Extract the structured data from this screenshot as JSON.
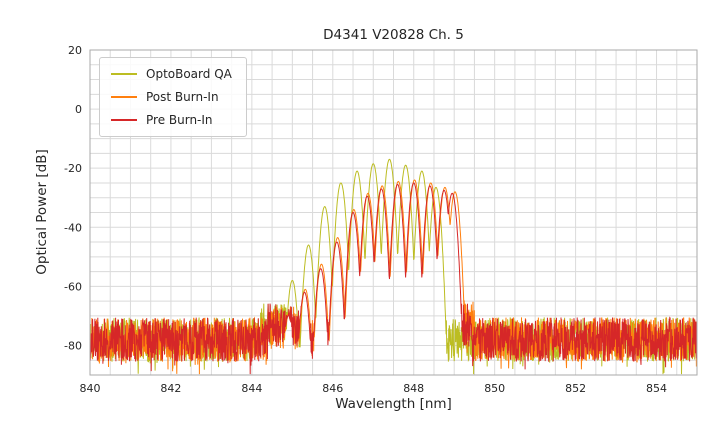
{
  "chart_data": {
    "type": "line",
    "title": "D4341 V20828 Ch. 5",
    "xlabel": "Wavelength [nm]",
    "ylabel": "Optical Power [dB]",
    "xlim": [
      840,
      855
    ],
    "ylim": [
      -90,
      20
    ],
    "xticks": [
      840,
      842,
      844,
      846,
      848,
      850,
      852,
      854
    ],
    "yticks": [
      20,
      0,
      -20,
      -40,
      -60,
      -80
    ],
    "x_minor_step": 0.5,
    "y_minor_step": 5,
    "grid": true,
    "grid_color": "#dadada",
    "frame_color": "#aaaaaa",
    "text_color": "#262626",
    "legend_position": "upper-left",
    "sample_step_nm": 0.008,
    "series": [
      {
        "name": "OptoBoard QA",
        "color": "#bcbd22",
        "seed": 11,
        "noise_floor_db": -78,
        "noise_amplitude_db": 7.5,
        "noise_bumps": [
          {
            "from": 844.2,
            "to": 845.0,
            "rise": 5
          }
        ],
        "lobe_curvature": 800,
        "lobes": [
          [
            844.6,
            -68
          ],
          [
            845.0,
            -58
          ],
          [
            845.4,
            -46
          ],
          [
            845.8,
            -33
          ],
          [
            846.2,
            -25
          ],
          [
            846.6,
            -21
          ],
          [
            847.0,
            -18.5
          ],
          [
            847.4,
            -17
          ],
          [
            847.8,
            -19
          ],
          [
            848.2,
            -21
          ],
          [
            848.55,
            -26.5
          ]
        ]
      },
      {
        "name": "Post Burn-In",
        "color": "#ff7f0e",
        "seed": 23,
        "noise_floor_db": -78,
        "noise_amplitude_db": 7.5,
        "noise_bumps": [
          {
            "from": 844.4,
            "to": 845.3,
            "rise": 4
          },
          {
            "from": 848.9,
            "to": 849.5,
            "rise": 6
          }
        ],
        "lobe_curvature": 800,
        "lobes": [
          [
            844.92,
            -69
          ],
          [
            845.32,
            -61
          ],
          [
            845.72,
            -52.5
          ],
          [
            846.12,
            -43.5
          ],
          [
            846.52,
            -34
          ],
          [
            846.87,
            -28.5
          ],
          [
            847.22,
            -26
          ],
          [
            847.62,
            -24.5
          ],
          [
            848.02,
            -24
          ],
          [
            848.42,
            -25
          ],
          [
            848.77,
            -26.5
          ],
          [
            849.02,
            -28
          ]
        ]
      },
      {
        "name": "Pre Burn-In",
        "color": "#d62728",
        "seed": 37,
        "noise_floor_db": -78,
        "noise_amplitude_db": 7.5,
        "noise_bumps": [
          {
            "from": 844.4,
            "to": 845.3,
            "rise": 5
          },
          {
            "from": 848.9,
            "to": 849.4,
            "rise": 5
          }
        ],
        "lobe_curvature": 800,
        "lobes": [
          [
            844.9,
            -70
          ],
          [
            845.3,
            -62
          ],
          [
            845.7,
            -54
          ],
          [
            846.1,
            -45
          ],
          [
            846.5,
            -35
          ],
          [
            846.85,
            -29.5
          ],
          [
            847.2,
            -27
          ],
          [
            847.6,
            -25.5
          ],
          [
            848.0,
            -25
          ],
          [
            848.4,
            -26
          ],
          [
            848.75,
            -27.5
          ],
          [
            848.95,
            -28.5
          ]
        ]
      }
    ]
  }
}
